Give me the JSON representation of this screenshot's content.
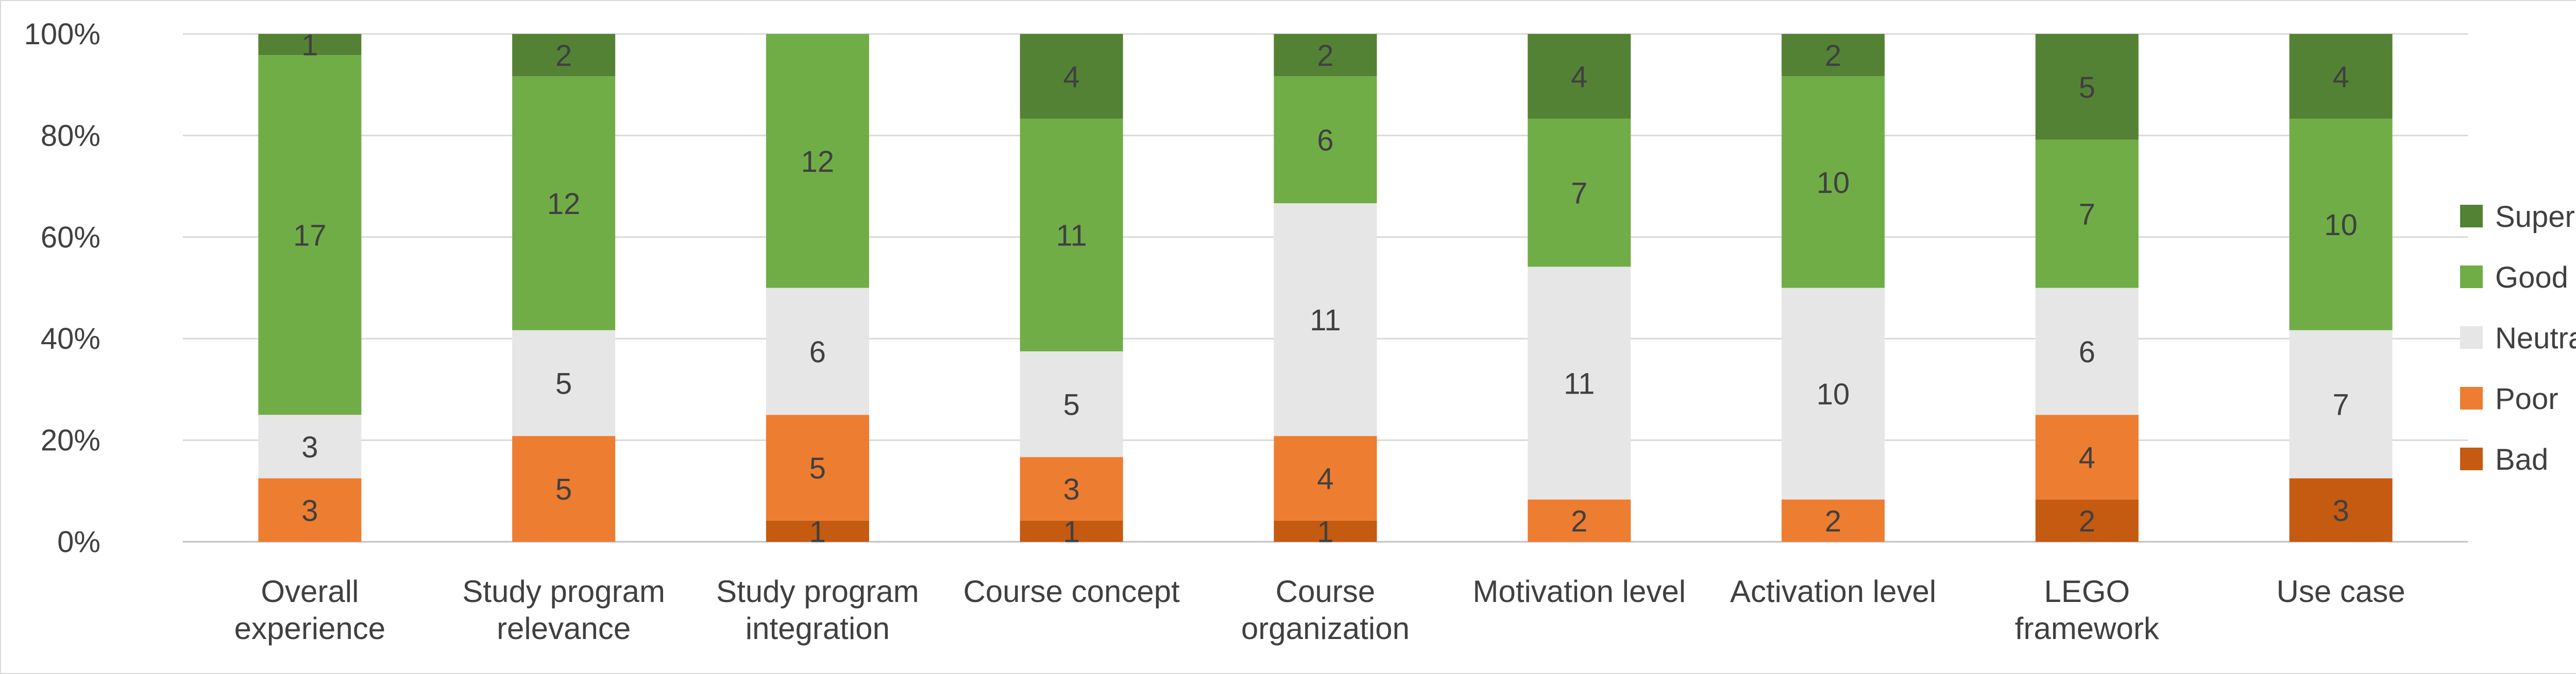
{
  "chart_data": {
    "type": "bar",
    "stacked": "100%",
    "categories": [
      [
        "Overall",
        "experience"
      ],
      [
        "Study program",
        "relevance"
      ],
      [
        "Study program",
        "integration"
      ],
      [
        "Course concept"
      ],
      [
        "Course",
        "organization"
      ],
      [
        "Motivation level"
      ],
      [
        "Activation level"
      ],
      [
        "LEGO",
        "framework"
      ],
      [
        "Use case"
      ]
    ],
    "series": [
      {
        "name": "Bad",
        "color": "#c55a11",
        "values": [
          0,
          0,
          1,
          1,
          1,
          0,
          0,
          2,
          3
        ]
      },
      {
        "name": "Poor",
        "color": "#ed7d31",
        "values": [
          3,
          5,
          5,
          3,
          4,
          2,
          2,
          4,
          0
        ]
      },
      {
        "name": "Neutral",
        "color": "#e7e6e6",
        "values": [
          3,
          5,
          6,
          5,
          11,
          11,
          10,
          6,
          7
        ]
      },
      {
        "name": "Good",
        "color": "#70ad47",
        "values": [
          17,
          12,
          12,
          11,
          6,
          7,
          10,
          7,
          10
        ]
      },
      {
        "name": "Super",
        "color": "#548235",
        "values": [
          1,
          2,
          0,
          4,
          2,
          4,
          2,
          5,
          4
        ]
      }
    ],
    "y_ticks": [
      "0%",
      "20%",
      "40%",
      "60%",
      "80%",
      "100%"
    ],
    "ylim": [
      0,
      100
    ],
    "grid": true,
    "legend_position": "right",
    "legend_order": [
      "Super",
      "Good",
      "Neutral",
      "Poor",
      "Bad"
    ],
    "title": "",
    "xlabel": "",
    "ylabel": ""
  }
}
